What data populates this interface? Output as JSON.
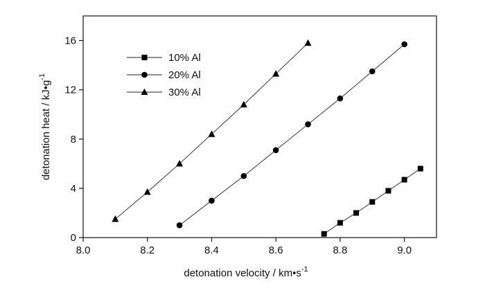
{
  "chart_data": {
    "type": "line",
    "xlabel": "detonation  velocity  / km•s",
    "xlabel_sup": "-1",
    "ylabel": "detonation heat / kJ•g",
    "ylabel_sup": "-1",
    "xlim": [
      8.0,
      9.1
    ],
    "ylim": [
      0,
      18
    ],
    "x_ticks": [
      8.0,
      8.2,
      8.4,
      8.6,
      8.8,
      9.0
    ],
    "x_tick_labels": [
      "8.0",
      "8.2",
      "8.4",
      "8.6",
      "8.8",
      "9.0"
    ],
    "y_ticks": [
      0,
      4,
      8,
      12,
      16
    ],
    "y_tick_labels": [
      "0",
      "4",
      "8",
      "12",
      "16"
    ],
    "grid": false,
    "legend_position": "top-left",
    "series": [
      {
        "name": "10% Al",
        "marker": "square",
        "x": [
          8.75,
          8.8,
          8.85,
          8.9,
          8.95,
          9.0,
          9.05
        ],
        "y": [
          0.3,
          1.2,
          2.0,
          2.9,
          3.8,
          4.7,
          5.6
        ]
      },
      {
        "name": "20% Al",
        "marker": "circle",
        "x": [
          8.3,
          8.4,
          8.5,
          8.6,
          8.7,
          8.8,
          8.9,
          9.0
        ],
        "y": [
          1.0,
          3.0,
          5.0,
          7.1,
          9.2,
          11.3,
          13.5,
          15.7
        ]
      },
      {
        "name": "30% Al",
        "marker": "triangle",
        "x": [
          8.1,
          8.2,
          8.3,
          8.4,
          8.5,
          8.6,
          8.7
        ],
        "y": [
          1.5,
          3.7,
          6.0,
          8.4,
          10.8,
          13.3,
          15.8
        ]
      }
    ]
  }
}
